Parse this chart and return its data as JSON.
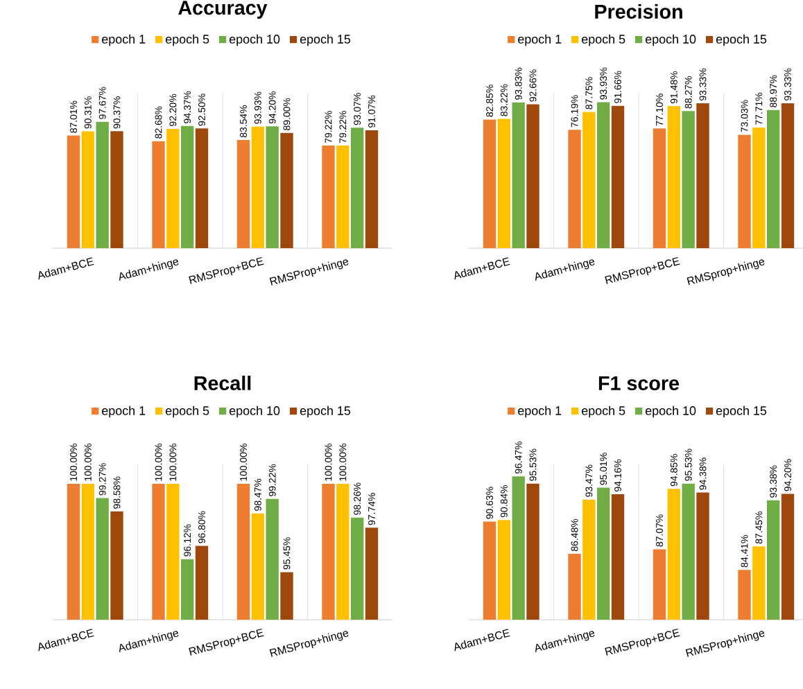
{
  "chart_data": [
    {
      "type": "bar",
      "title": "Accuracy",
      "categories": [
        "Adam+BCE",
        "Adam+hinge",
        "RMSProp+BCE",
        "RMSProp+hinge"
      ],
      "ylim": [
        0,
        120
      ],
      "grid": "x",
      "legend": "top",
      "tick_labels": "x",
      "series": [
        {
          "name": "epoch 1",
          "color": "#ed7d31",
          "values": [
            87.01,
            82.68,
            83.54,
            79.22
          ],
          "value_labels": [
            "87.01%",
            "82.68%",
            "83.54%",
            "79.22%"
          ]
        },
        {
          "name": "epoch 5",
          "color": "#ffc000",
          "values": [
            90.31,
            92.2,
            93.93,
            79.22
          ],
          "value_labels": [
            "90.31%",
            "92.20%",
            "93.93%",
            "79.22%"
          ]
        },
        {
          "name": "epoch 10",
          "color": "#70ad47",
          "values": [
            97.67,
            94.37,
            94.2,
            93.07
          ],
          "value_labels": [
            "97.67%",
            "94.37%",
            "94.20%",
            "93.07%"
          ]
        },
        {
          "name": "epoch 15",
          "color": "#9e480e",
          "values": [
            90.37,
            92.5,
            89.0,
            91.07
          ],
          "value_labels": [
            "90.37%",
            "92.50%",
            "89.00%",
            "91.07%"
          ]
        }
      ]
    },
    {
      "type": "bar",
      "title": "Precision",
      "categories": [
        "Adam+BCE",
        "Adam+hinge",
        "RMSProp+BCE",
        "RMSprop+hinge"
      ],
      "ylim": [
        0,
        100
      ],
      "grid": "x",
      "legend": "top",
      "tick_labels": "x",
      "series": [
        {
          "name": "epoch 1",
          "color": "#ed7d31",
          "values": [
            82.85,
            76.19,
            77.1,
            73.03
          ],
          "value_labels": [
            "82.85%",
            "76.19%",
            "77.10%",
            "73.03%"
          ]
        },
        {
          "name": "epoch 5",
          "color": "#ffc000",
          "values": [
            83.22,
            87.75,
            91.48,
            77.71
          ],
          "value_labels": [
            "83.22%",
            "87.75%",
            "91.48%",
            "77.71%"
          ]
        },
        {
          "name": "epoch 10",
          "color": "#70ad47",
          "values": [
            93.83,
            93.93,
            88.27,
            88.97
          ],
          "value_labels": [
            "93.83%",
            "93.93%",
            "88.27%",
            "88.97%"
          ]
        },
        {
          "name": "epoch 15",
          "color": "#9e480e",
          "values": [
            92.66,
            91.66,
            93.33,
            93.33
          ],
          "value_labels": [
            "92.66%",
            "91.66%",
            "93.33%",
            "93.33%"
          ]
        }
      ]
    },
    {
      "type": "bar",
      "title": "Recall",
      "categories": [
        "Adam+BCE",
        "Adam+hinge",
        "RMSProp+BCE",
        "RMSProp+hinge"
      ],
      "ylim": [
        93,
        101
      ],
      "grid": "x",
      "legend": "top",
      "tick_labels": "x",
      "series": [
        {
          "name": "epoch 1",
          "color": "#ed7d31",
          "values": [
            100.0,
            100.0,
            100.0,
            100.0
          ],
          "value_labels": [
            "100.00%",
            "100.00%",
            "100.00%",
            "100.00%"
          ]
        },
        {
          "name": "epoch 5",
          "color": "#ffc000",
          "values": [
            100.0,
            100.0,
            98.47,
            100.0
          ],
          "value_labels": [
            "100.00%",
            "100.00%",
            "98.47%",
            "100.00%"
          ]
        },
        {
          "name": "epoch 10",
          "color": "#70ad47",
          "values": [
            99.27,
            96.12,
            99.22,
            98.26
          ],
          "value_labels": [
            "99.27%",
            "96.12%",
            "99.22%",
            "98.26%"
          ]
        },
        {
          "name": "epoch 15",
          "color": "#9e480e",
          "values": [
            98.58,
            96.8,
            95.45,
            97.74
          ],
          "value_labels": [
            "98.58%",
            "96.80%",
            "95.45%",
            "97.74%"
          ]
        }
      ]
    },
    {
      "type": "bar",
      "title": "F1 score",
      "categories": [
        "Adam+BCE",
        "Adam+hinge",
        "RMSProp+BCE",
        "RMSProp+hinge"
      ],
      "ylim": [
        78,
        98
      ],
      "grid": "x",
      "legend": "top",
      "tick_labels": "x",
      "series": [
        {
          "name": "epoch 1",
          "color": "#ed7d31",
          "values": [
            90.63,
            86.48,
            87.07,
            84.41
          ],
          "value_labels": [
            "90.63%",
            "86.48%",
            "87.07%",
            "84.41%"
          ]
        },
        {
          "name": "epoch 5",
          "color": "#ffc000",
          "values": [
            90.84,
            93.47,
            94.85,
            87.45
          ],
          "value_labels": [
            "90.84%",
            "93.47%",
            "94.85%",
            "87.45%"
          ]
        },
        {
          "name": "epoch 10",
          "color": "#70ad47",
          "values": [
            96.47,
            95.01,
            95.53,
            93.38
          ],
          "value_labels": [
            "96.47%",
            "95.01%",
            "95.53%",
            "93.38%"
          ]
        },
        {
          "name": "epoch 15",
          "color": "#9e480e",
          "values": [
            95.53,
            94.16,
            94.38,
            94.2
          ],
          "value_labels": [
            "95.53%",
            "94.16%",
            "94.38%",
            "94.20%"
          ]
        }
      ]
    }
  ]
}
